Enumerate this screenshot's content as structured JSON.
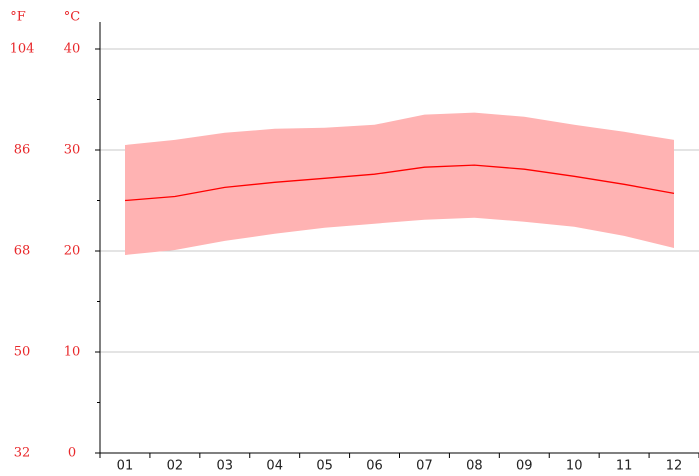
{
  "chart_data": {
    "type": "line",
    "ylabel": "°C",
    "y2label": "°F",
    "categories": [
      "01",
      "02",
      "03",
      "04",
      "05",
      "06",
      "07",
      "08",
      "09",
      "10",
      "11",
      "12"
    ],
    "values": [
      25.0,
      25.4,
      26.3,
      26.8,
      27.2,
      27.6,
      28.3,
      28.5,
      28.1,
      27.4,
      26.6,
      25.7
    ],
    "color": "#ff0000",
    "band": {
      "upper": [
        30.5,
        31.0,
        31.7,
        32.1,
        32.2,
        32.5,
        33.5,
        33.7,
        33.3,
        32.5,
        31.8,
        31.0
      ],
      "lower": [
        19.6,
        20.1,
        21.0,
        21.7,
        22.3,
        22.7,
        23.1,
        23.3,
        22.9,
        22.4,
        21.5,
        20.3
      ],
      "color": "#ffb3b3"
    },
    "ylim": [
      0,
      40
    ],
    "yticks": [
      0,
      10,
      20,
      30,
      40
    ],
    "yminor_ticks": [
      5,
      15,
      25,
      35
    ],
    "y2lim": [
      32,
      104
    ],
    "y2ticks": [
      32,
      50,
      68,
      86,
      104
    ],
    "grid": true
  }
}
